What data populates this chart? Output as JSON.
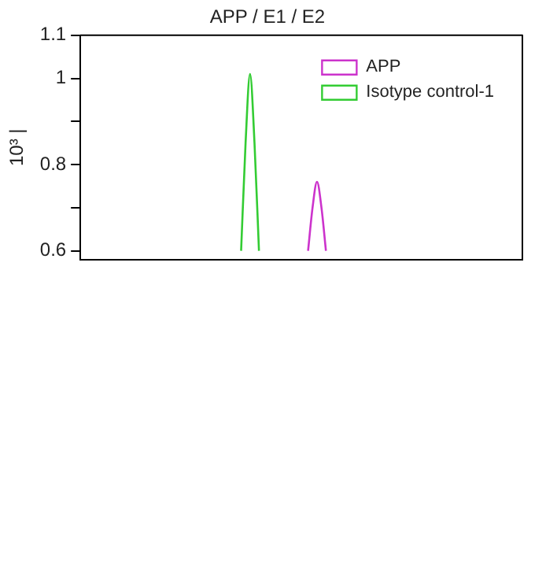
{
  "chart_data": {
    "type": "line",
    "title": "APP / E1 / E2",
    "ylabel": "10³ |",
    "categories": [
      null,
      null,
      null,
      null,
      null,
      null,
      null,
      null,
      null,
      null,
      null,
      null,
      null,
      null,
      null,
      null,
      null,
      null,
      null,
      null,
      null,
      null,
      null,
      null,
      null,
      null,
      null,
      null,
      null,
      null,
      null,
      null,
      null,
      null,
      null,
      null,
      null,
      null,
      null,
      null,
      null,
      null,
      null,
      null,
      null,
      null,
      null,
      null,
      null,
      null,
      null,
      null,
      null,
      null,
      null,
      null,
      null,
      null,
      null,
      null,
      null,
      null,
      null,
      null,
      null,
      null,
      null,
      null,
      null,
      null,
      null,
      null,
      null,
      null,
      null,
      null,
      null,
      null,
      null,
      null,
      null,
      null,
      null,
      null,
      null,
      null,
      null,
      null,
      null,
      null,
      null,
      null,
      null,
      null,
      null,
      null,
      null,
      null,
      null,
      null
    ],
    "series": [
      {
        "name": "APP",
        "color": "#cc33cc",
        "values": [
          null,
          null,
          null,
          null,
          null,
          null,
          null,
          null,
          null,
          null,
          null,
          null,
          null,
          null,
          null,
          null,
          null,
          null,
          null,
          null,
          null,
          null,
          null,
          null,
          null,
          null,
          null,
          null,
          null,
          null,
          null,
          null,
          null,
          null,
          null,
          null,
          null,
          null,
          null,
          null,
          null,
          null,
          null,
          null,
          null,
          null,
          null,
          null,
          null,
          null,
          null,
          0.6,
          0.7,
          0.76,
          0.7,
          0.6,
          null,
          null,
          null,
          null,
          null,
          null,
          null,
          null,
          null,
          null,
          null,
          null,
          null,
          null,
          null,
          null,
          null,
          null,
          null,
          null,
          null,
          null,
          null,
          null,
          null,
          null,
          null,
          null,
          null,
          null,
          null,
          null,
          null,
          null,
          null,
          null,
          null,
          null,
          null,
          null,
          null,
          null,
          null,
          null
        ]
      },
      {
        "name": "Isotype control-1",
        "color": "#33cc33",
        "values": [
          null,
          null,
          null,
          null,
          null,
          null,
          null,
          null,
          null,
          null,
          null,
          null,
          null,
          null,
          null,
          null,
          null,
          null,
          null,
          null,
          null,
          null,
          null,
          null,
          null,
          null,
          null,
          null,
          null,
          null,
          null,
          null,
          null,
          null,
          null,
          null,
          0.6,
          0.85,
          1.01,
          0.85,
          0.6,
          null,
          null,
          null,
          null,
          null,
          null,
          null,
          null,
          null,
          null,
          null,
          null,
          null,
          null,
          null,
          null,
          null,
          null,
          null,
          null,
          null,
          null,
          null,
          null,
          null,
          null,
          null,
          null,
          null,
          null,
          null,
          null,
          null,
          null,
          null,
          null,
          null,
          null,
          null,
          null,
          null,
          null,
          null,
          null,
          null,
          null,
          null,
          null,
          null,
          null,
          null,
          null,
          null,
          null,
          null,
          null,
          null,
          null,
          null
        ]
      }
    ],
    "ylim": [
      0.58,
      1.1
    ],
    "yticks": [
      {
        "value": 0.6,
        "label": "0.6"
      },
      {
        "value": 0.7,
        "label": null
      },
      {
        "value": 0.8,
        "label": "0.8"
      },
      {
        "value": 0.9,
        "label": null
      },
      {
        "value": 1,
        "label": "1"
      },
      {
        "value": 1.1,
        "label": "1.1"
      }
    ],
    "tick_labels": "y",
    "grid": false,
    "legend": "top right",
    "marker": "none",
    "line_style": "solid"
  }
}
